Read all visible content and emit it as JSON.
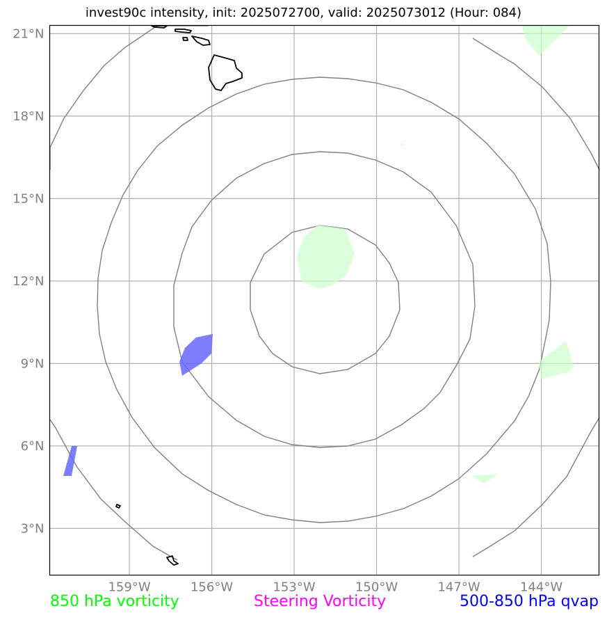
{
  "title": "invest90c intensity, init: 2025072700, valid: 2025073012 (Hour: 084)",
  "map": {
    "lat_ticks": [
      {
        "value": 21,
        "label": "21°N"
      },
      {
        "value": 18,
        "label": "18°N"
      },
      {
        "value": 15,
        "label": "15°N"
      },
      {
        "value": 12,
        "label": "12°N"
      },
      {
        "value": 9,
        "label": "9°N"
      },
      {
        "value": 6,
        "label": "6°N"
      },
      {
        "value": 3,
        "label": "3°N"
      }
    ],
    "lon_ticks": [
      {
        "value": -159,
        "label": "159°W"
      },
      {
        "value": -156,
        "label": "156°W"
      },
      {
        "value": -153,
        "label": "153°W"
      },
      {
        "value": -150,
        "label": "150°W"
      },
      {
        "value": -147,
        "label": "147°W"
      },
      {
        "value": -144,
        "label": "144°W"
      }
    ],
    "extent": {
      "lon_min": -161.9,
      "lon_max": -141.9,
      "lat_min": 1.3,
      "lat_max": 21.3
    },
    "gridline_color": "#b0b0b0",
    "range_ring_color": "#808080",
    "vorticity_color": "#ccffcc",
    "qvap_color": "#6666ff"
  },
  "legend": {
    "vorticity_850": {
      "label": "850 hPa vorticity",
      "color": "#00ff00"
    },
    "steering_vorticity": {
      "label": "Steering Vorticity",
      "color": "#ff00ff"
    },
    "qvap": {
      "label": "500-850 hPa qvap",
      "color": "#0000ff"
    }
  }
}
